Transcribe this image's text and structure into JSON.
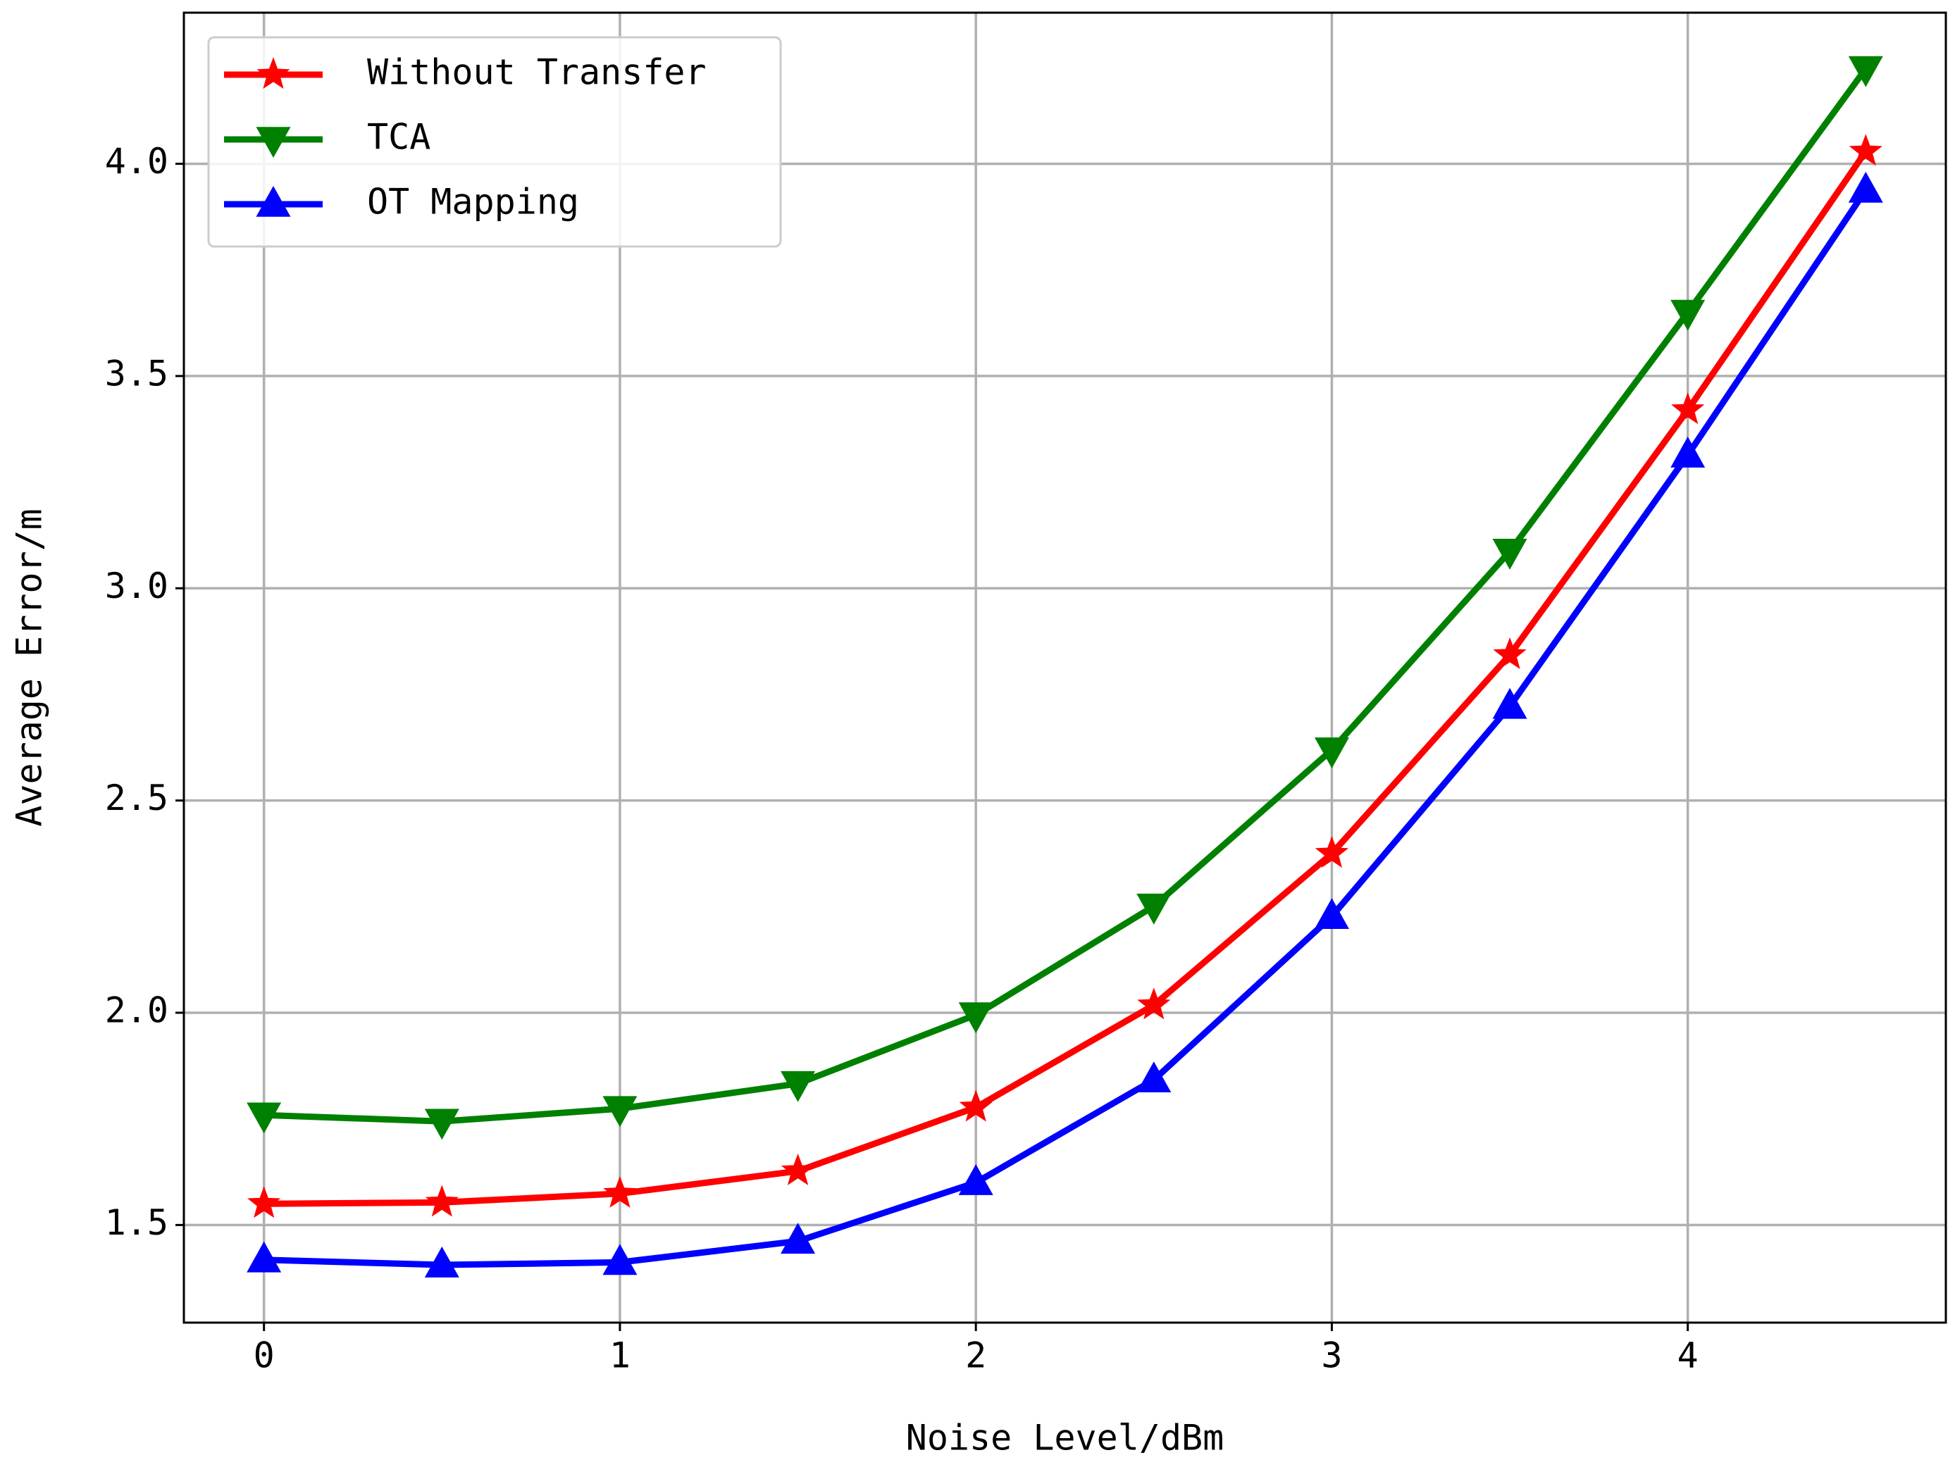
{
  "chart_data": {
    "type": "line",
    "x_label": "Noise Level/dBm",
    "y_label": "Average Error/m",
    "x": [
      0,
      0.5,
      1,
      1.5,
      2,
      2.5,
      3,
      3.5,
      4,
      4.5
    ],
    "series": [
      {
        "name": "Without Transfer",
        "color": "#ff0000",
        "marker": "star",
        "values": [
          1.55,
          1.553,
          1.574,
          1.627,
          1.777,
          2.018,
          2.375,
          2.843,
          3.42,
          4.029
        ]
      },
      {
        "name": "TCA",
        "color": "#008000",
        "marker": "triangle-down",
        "values": [
          1.759,
          1.744,
          1.774,
          1.833,
          1.995,
          2.251,
          2.619,
          3.087,
          3.65,
          4.224
        ]
      },
      {
        "name": "OT Mapping",
        "color": "#0000ff",
        "marker": "triangle-up",
        "values": [
          1.418,
          1.406,
          1.412,
          1.462,
          1.6,
          1.842,
          2.227,
          2.722,
          3.314,
          3.938
        ]
      }
    ],
    "xlim": [
      -0.225,
      4.725
    ],
    "ylim": [
      1.27,
      4.356
    ],
    "xticks": [
      0,
      1,
      2,
      3,
      4
    ],
    "yticks": [
      {
        "value": 1.5,
        "label": "1.5"
      },
      {
        "value": 2.0,
        "label": "2.0"
      },
      {
        "value": 2.5,
        "label": "2.5"
      },
      {
        "value": 3.0,
        "label": "3.0"
      },
      {
        "value": 3.5,
        "label": "3.5"
      },
      {
        "value": 4.0,
        "label": "4.0"
      }
    ],
    "grid": true,
    "legend": "upper left"
  }
}
